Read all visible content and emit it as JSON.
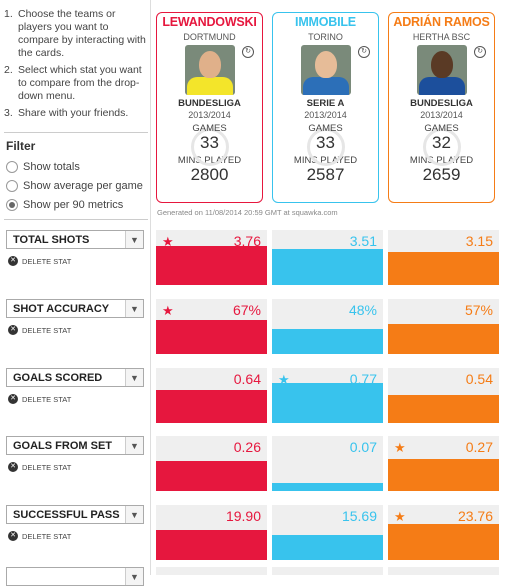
{
  "instructions": [
    {
      "num": "1.",
      "text": "Choose the teams or players you want to compare by interacting with the cards."
    },
    {
      "num": "2.",
      "text": "Select which stat you want to compare from the drop-down menu."
    },
    {
      "num": "3.",
      "text": "Share with your friends."
    }
  ],
  "filter": {
    "title": "Filter",
    "options": [
      {
        "label": "Show totals",
        "selected": false
      },
      {
        "label": "Show average per game",
        "selected": false
      },
      {
        "label": "Show per 90 metrics",
        "selected": true
      }
    ]
  },
  "players": [
    {
      "name": "LEWANDOWSKI",
      "club": "DORTMUND",
      "league": "BUNDESLIGA",
      "season": "2013/2014",
      "games_label": "GAMES",
      "games": "33",
      "mins_label": "MINS PLAYED",
      "mins": "2800",
      "color": "#e6173e"
    },
    {
      "name": "IMMOBILE",
      "club": "TORINO",
      "league": "SERIE A",
      "season": "2013/2014",
      "games_label": "GAMES",
      "games": "33",
      "mins_label": "MINS PLAYED",
      "mins": "2587",
      "color": "#38c3ed"
    },
    {
      "name": "ADRIÁN RAMOS",
      "club": "HERTHA BSC",
      "league": "BUNDESLIGA",
      "season": "2013/2014",
      "games_label": "GAMES",
      "games": "32",
      "mins_label": "MINS PLAYED",
      "mins": "2659",
      "color": "#f57c16"
    }
  ],
  "generated": "Generated on 11/08/2014 20:59 GMT at squawka.com",
  "delete_label": "DELETE STAT",
  "stats": [
    {
      "label": "TOTAL SHOTS",
      "values": [
        "3.76",
        "3.51",
        "3.15"
      ],
      "levels": [
        0.7,
        0.65,
        0.6
      ],
      "best": 0
    },
    {
      "label": "SHOT ACCURACY",
      "values": [
        "67%",
        "48%",
        "57%"
      ],
      "levels": [
        0.62,
        0.45,
        0.54
      ],
      "best": 0
    },
    {
      "label": "GOALS SCORED",
      "values": [
        "0.64",
        "0.77",
        "0.54"
      ],
      "levels": [
        0.6,
        0.72,
        0.5
      ],
      "best": 1
    },
    {
      "label": "GOALS FROM SET",
      "values": [
        "0.26",
        "0.07",
        "0.27"
      ],
      "levels": [
        0.55,
        0.15,
        0.58
      ],
      "best": 2
    },
    {
      "label": "SUCCESSFUL PASS",
      "values": [
        "19.90",
        "15.69",
        "23.76"
      ],
      "levels": [
        0.55,
        0.45,
        0.65
      ],
      "best": 2
    }
  ]
}
